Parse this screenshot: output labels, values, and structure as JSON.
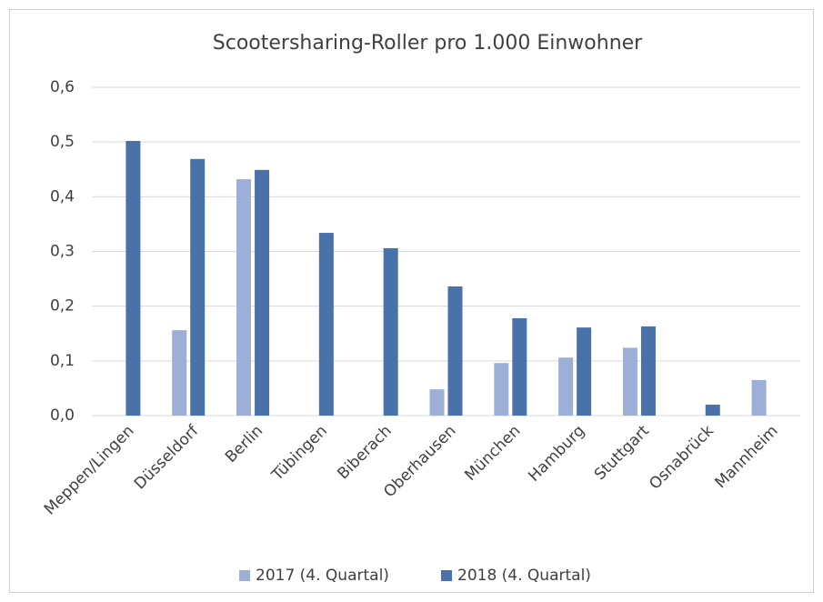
{
  "chart_data": {
    "type": "bar",
    "title": "Scootersharing-Roller pro 1.000 Einwohner",
    "categories": [
      "Meppen/Lingen",
      "Düsseldorf",
      "Berlin",
      "Tübingen",
      "Biberach",
      "Oberhausen",
      "München",
      "Hamburg",
      "Stuttgart",
      "Osnabrück",
      "Mannheim"
    ],
    "series": [
      {
        "name": "2017 (4. Quartal)",
        "color": "#9dafd6",
        "values": [
          null,
          0.156,
          0.432,
          null,
          null,
          0.048,
          0.096,
          0.106,
          0.124,
          null,
          0.065
        ]
      },
      {
        "name": "2018 (4. Quartal)",
        "color": "#4a72aa",
        "values": [
          0.502,
          0.469,
          0.449,
          0.334,
          0.306,
          0.236,
          0.178,
          0.161,
          0.163,
          0.02,
          null
        ]
      }
    ],
    "ylim": [
      0,
      0.6
    ],
    "yticks": [
      {
        "value": 0,
        "label": "0,0"
      },
      {
        "value": 0.1,
        "label": "0,1"
      },
      {
        "value": 0.2,
        "label": "0,2"
      },
      {
        "value": 0.3,
        "label": "0,3"
      },
      {
        "value": 0.4,
        "label": "0,4"
      },
      {
        "value": 0.5,
        "label": "0,5"
      },
      {
        "value": 0.6,
        "label": "0,6"
      }
    ],
    "grid": true,
    "legend": "bottom"
  }
}
